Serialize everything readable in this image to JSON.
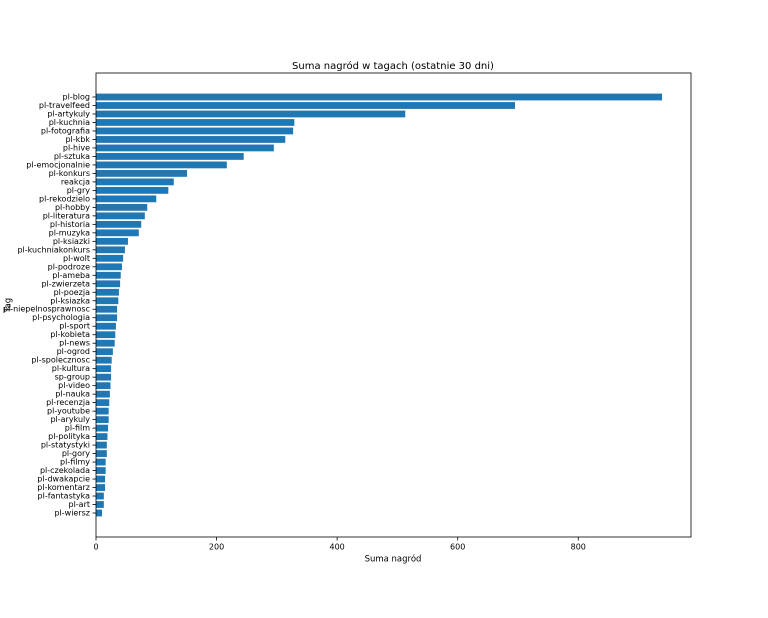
{
  "chart_data": {
    "type": "barh",
    "title": "Suma nagród w tagach (ostatnie 30 dni)",
    "x_label": "Suma nagród",
    "y_label": "Tag",
    "color": "#1f77b4",
    "categories": [
      "pl-blog",
      "pl-travelfeed",
      "pl-artykuly",
      "pl-kuchnia",
      "pl-fotografia",
      "pl-kbk",
      "pl-hive",
      "pl-sztuka",
      "pl-emocjonalnie",
      "pl-konkurs",
      "reakcja",
      "pl-gry",
      "pl-rekodzielo",
      "pl-hobby",
      "pl-literatura",
      "pl-historia",
      "pl-muzyka",
      "pl-ksiazki",
      "pl-kuchniakonkurs",
      "pl-wolt",
      "pl-podroze",
      "pl-ameba",
      "pl-zwierzeta",
      "pl-poezja",
      "pl-ksiazka",
      "pl-niepelnosprawnosc",
      "pl-psychologia",
      "pl-sport",
      "pl-kobieta",
      "pl-news",
      "pl-ogrod",
      "pl-spolecznosc",
      "pl-kultura",
      "sp-group",
      "pl-video",
      "pl-nauka",
      "pl-recenzja",
      "pl-youtube",
      "pl-arykuly",
      "pl-film",
      "pl-polityka",
      "pl-statystyki",
      "pl-gory",
      "pl-filmy",
      "pl-czekolada",
      "pl-dwakapcie",
      "pl-komentarz",
      "pl-fantastyka",
      "pl-art",
      "pl-wiersz"
    ],
    "values": [
      939,
      695,
      513,
      329,
      327,
      314,
      295,
      245,
      217,
      151,
      129,
      120,
      100,
      85,
      81,
      75,
      71,
      53,
      48,
      45,
      43,
      41,
      40,
      38,
      37,
      35,
      35,
      33,
      32,
      31,
      28,
      26,
      25,
      25,
      24,
      23,
      22,
      21,
      21,
      20,
      19,
      18,
      18,
      16,
      16,
      15,
      15,
      13,
      13,
      10
    ],
    "xlim": [
      0,
      987
    ],
    "xticks": [
      0,
      200,
      400,
      600,
      800
    ]
  }
}
